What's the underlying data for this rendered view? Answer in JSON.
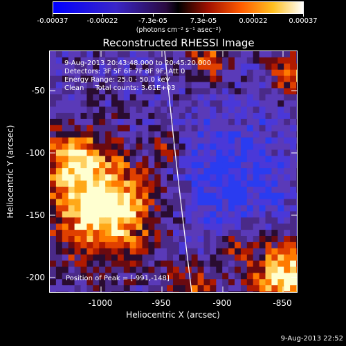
{
  "colorbar": {
    "tick_labels": [
      "-0.00037",
      "-0.00022",
      "-7.3e-05",
      "7.3e-05",
      "0.00022",
      "0.00037"
    ],
    "units": "(photons cm⁻² s⁻¹ asec⁻²)"
  },
  "title": "Reconstructed RHESSI Image",
  "info": {
    "time_range": "9-Aug-2013 20:43:48.000 to 20:45:20.000",
    "detectors": "Detectors: 3F 5F 6F 7F 8F 9F, Att 0",
    "energy": "Energy Range: 25.0 - 50.0 keV",
    "clean": "Clean     Total counts: 3.61E+03"
  },
  "peak": "Position of Peak = [-991,-148]",
  "axes": {
    "xlabel": "Heliocentric X (arcsec)",
    "ylabel": "Heliocentric Y (arcsec)",
    "x_ticks": [
      "-1000",
      "-950",
      "-900",
      "-850"
    ],
    "y_ticks": [
      "-50",
      "-100",
      "-150",
      "-200"
    ]
  },
  "timestamp": "9-Aug-2013 22:52"
}
